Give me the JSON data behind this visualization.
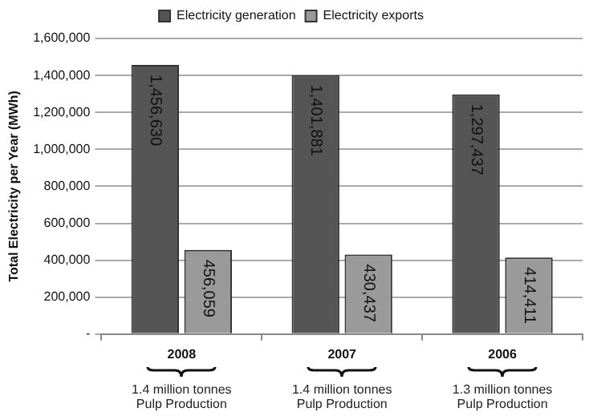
{
  "chart_data": {
    "type": "bar",
    "ylabel": "Total Electricity per Year (MWh)",
    "categories": [
      "2008",
      "2007",
      "2006"
    ],
    "series": [
      {
        "name": "Electricity generation",
        "color": "#555555",
        "values": [
          1456630,
          1401881,
          1297437
        ],
        "value_labels": [
          "1,456,630",
          "1,401,881",
          "1,297,437"
        ]
      },
      {
        "name": "Electricity exports",
        "color": "#9a9a9a",
        "values": [
          456059,
          430437,
          414411
        ],
        "value_labels": [
          "456,059",
          "430,437",
          "414,411"
        ]
      }
    ],
    "ylim": [
      0,
      1600000
    ],
    "yticks": [
      {
        "value": 0,
        "label": "-"
      },
      {
        "value": 200000,
        "label": "200,000"
      },
      {
        "value": 400000,
        "label": "400,000"
      },
      {
        "value": 600000,
        "label": "600,000"
      },
      {
        "value": 800000,
        "label": "800,000"
      },
      {
        "value": 1000000,
        "label": "1,000,000"
      },
      {
        "value": 1200000,
        "label": "1,200,000"
      },
      {
        "value": 1400000,
        "label": "1,400,000"
      },
      {
        "value": 1600000,
        "label": "1,600,000"
      }
    ],
    "grid": "y",
    "legend": "top",
    "annotations": [
      "1.4 million tonnes\nPulp Production",
      "1.4 million tonnes\nPulp Production",
      "1.3 million tonnes\nPulp Production"
    ]
  }
}
